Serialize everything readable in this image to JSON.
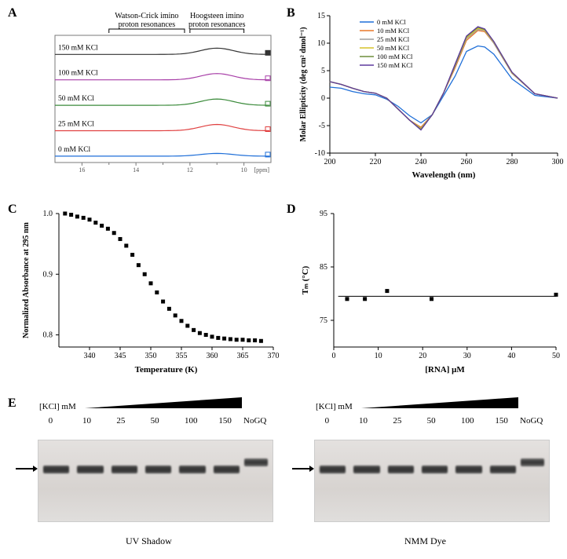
{
  "panelA": {
    "label": "A",
    "annotations": {
      "wc": "Watson-Crick imino\nproton resonances",
      "hoog": "Hoogsteen imino\nproton resonances"
    },
    "x_axis": {
      "label": "[ppm]",
      "ticks": [
        16,
        14,
        12,
        11,
        10
      ],
      "range": [
        17,
        9
      ]
    },
    "series": [
      {
        "label": "0 mM KCl",
        "color": "#1f6fd8",
        "baseline": 4,
        "peak_h": 3.5
      },
      {
        "label": "25 mM KCl",
        "color": "#e04040",
        "baseline": 3,
        "peak_h": 8
      },
      {
        "label": "50 mM KCl",
        "color": "#3a8a3a",
        "baseline": 2,
        "peak_h": 8
      },
      {
        "label": "100 mM KCl",
        "color": "#a83fa8",
        "baseline": 1,
        "peak_h": 8
      },
      {
        "label": "150 mM KCl",
        "color": "#333333",
        "baseline": 0,
        "peak_h": 8
      }
    ],
    "marker_colors": [
      "#1f6fd8",
      "#e04040",
      "#3a8a3a",
      "#a83fa8",
      "#333333"
    ],
    "peak_center_ppm": 11.0,
    "peak_width_ppm": 1.2,
    "box_color": "#000000"
  },
  "panelB": {
    "label": "B",
    "x_axis": {
      "label": "Wavelength (nm)",
      "min": 200,
      "max": 300,
      "ticks": [
        200,
        220,
        240,
        260,
        280,
        300
      ]
    },
    "y_axis": {
      "label": "Molar Ellipticity (deg cm² dmol⁻¹)",
      "min": -10,
      "max": 15,
      "ticks": [
        -10,
        -5,
        0,
        5,
        10,
        15
      ]
    },
    "series": [
      {
        "name": "0 mM KCl",
        "color": "#1f6fd8",
        "points": [
          [
            200,
            2
          ],
          [
            205,
            1.8
          ],
          [
            210,
            1.2
          ],
          [
            215,
            0.8
          ],
          [
            220,
            0.6
          ],
          [
            225,
            -0.2
          ],
          [
            230,
            -1.5
          ],
          [
            235,
            -3.2
          ],
          [
            240,
            -4.5
          ],
          [
            245,
            -3
          ],
          [
            250,
            0.5
          ],
          [
            255,
            4
          ],
          [
            260,
            8.5
          ],
          [
            265,
            9.5
          ],
          [
            268,
            9.3
          ],
          [
            272,
            8
          ],
          [
            280,
            3.5
          ],
          [
            290,
            0.5
          ],
          [
            300,
            0
          ]
        ]
      },
      {
        "name": "10 mM KCl",
        "color": "#e8782a",
        "points": [
          [
            200,
            3
          ],
          [
            205,
            2.5
          ],
          [
            210,
            1.8
          ],
          [
            215,
            1.2
          ],
          [
            220,
            0.9
          ],
          [
            225,
            0
          ],
          [
            230,
            -2
          ],
          [
            235,
            -4
          ],
          [
            240,
            -5.3
          ],
          [
            245,
            -3
          ],
          [
            250,
            1
          ],
          [
            255,
            5.5
          ],
          [
            260,
            10.5
          ],
          [
            265,
            12.3
          ],
          [
            268,
            12.1
          ],
          [
            272,
            10
          ],
          [
            280,
            4.5
          ],
          [
            290,
            0.8
          ],
          [
            300,
            0
          ]
        ]
      },
      {
        "name": "25 mM KCl",
        "color": "#9e9e9e",
        "points": [
          [
            200,
            3
          ],
          [
            205,
            2.5
          ],
          [
            210,
            1.8
          ],
          [
            215,
            1.2
          ],
          [
            220,
            0.9
          ],
          [
            225,
            0
          ],
          [
            230,
            -2
          ],
          [
            235,
            -4
          ],
          [
            240,
            -5.5
          ],
          [
            245,
            -3
          ],
          [
            250,
            1
          ],
          [
            255,
            5.8
          ],
          [
            260,
            10.8
          ],
          [
            265,
            12.5
          ],
          [
            268,
            12.3
          ],
          [
            272,
            10
          ],
          [
            280,
            4.5
          ],
          [
            290,
            0.8
          ],
          [
            300,
            0
          ]
        ]
      },
      {
        "name": "50 mM KCl",
        "color": "#d6c22a",
        "points": [
          [
            200,
            3
          ],
          [
            205,
            2.5
          ],
          [
            210,
            1.8
          ],
          [
            215,
            1.2
          ],
          [
            220,
            0.9
          ],
          [
            225,
            0
          ],
          [
            230,
            -2
          ],
          [
            235,
            -4
          ],
          [
            240,
            -5.6
          ],
          [
            245,
            -3
          ],
          [
            250,
            1
          ],
          [
            255,
            6
          ],
          [
            260,
            11
          ],
          [
            265,
            12.7
          ],
          [
            268,
            12.4
          ],
          [
            272,
            10.2
          ],
          [
            280,
            4.6
          ],
          [
            290,
            0.8
          ],
          [
            300,
            0
          ]
        ]
      },
      {
        "name": "100 mM KCl",
        "color": "#6d8d3b",
        "points": [
          [
            200,
            3
          ],
          [
            205,
            2.5
          ],
          [
            210,
            1.8
          ],
          [
            215,
            1.2
          ],
          [
            220,
            0.9
          ],
          [
            225,
            0
          ],
          [
            230,
            -2
          ],
          [
            235,
            -4
          ],
          [
            240,
            -5.7
          ],
          [
            245,
            -3
          ],
          [
            250,
            1
          ],
          [
            255,
            6
          ],
          [
            260,
            11.2
          ],
          [
            265,
            12.9
          ],
          [
            268,
            12.5
          ],
          [
            272,
            10.3
          ],
          [
            280,
            4.7
          ],
          [
            290,
            0.8
          ],
          [
            300,
            0
          ]
        ]
      },
      {
        "name": "150 mM KCl",
        "color": "#5e3a9e",
        "points": [
          [
            200,
            3
          ],
          [
            205,
            2.5
          ],
          [
            210,
            1.8
          ],
          [
            215,
            1.2
          ],
          [
            220,
            0.9
          ],
          [
            225,
            0
          ],
          [
            230,
            -2
          ],
          [
            235,
            -4
          ],
          [
            240,
            -5.8
          ],
          [
            245,
            -3
          ],
          [
            250,
            1
          ],
          [
            255,
            6.2
          ],
          [
            260,
            11.3
          ],
          [
            265,
            13.0
          ],
          [
            268,
            12.6
          ],
          [
            272,
            10.3
          ],
          [
            280,
            4.7
          ],
          [
            290,
            0.8
          ],
          [
            300,
            0
          ]
        ]
      }
    ]
  },
  "panelC": {
    "label": "C",
    "x_axis": {
      "label": "Temperature (K)",
      "min": 335,
      "max": 370,
      "ticks": [
        340,
        345,
        350,
        355,
        360,
        365,
        370
      ]
    },
    "y_axis": {
      "label": "Normalized Absorbance at 295 nm",
      "min": 0.78,
      "max": 1.0,
      "ticks": [
        0.8,
        0.9,
        1.0
      ]
    },
    "marker": {
      "color": "#000000",
      "shape": "square",
      "size": 5
    },
    "points": [
      [
        336,
        1.0
      ],
      [
        337,
        0.998
      ],
      [
        338,
        0.995
      ],
      [
        339,
        0.993
      ],
      [
        340,
        0.99
      ],
      [
        341,
        0.985
      ],
      [
        342,
        0.98
      ],
      [
        343,
        0.975
      ],
      [
        344,
        0.968
      ],
      [
        345,
        0.958
      ],
      [
        346,
        0.947
      ],
      [
        347,
        0.932
      ],
      [
        348,
        0.915
      ],
      [
        349,
        0.9
      ],
      [
        350,
        0.885
      ],
      [
        351,
        0.87
      ],
      [
        352,
        0.855
      ],
      [
        353,
        0.843
      ],
      [
        354,
        0.832
      ],
      [
        355,
        0.823
      ],
      [
        356,
        0.815
      ],
      [
        357,
        0.808
      ],
      [
        358,
        0.803
      ],
      [
        359,
        0.8
      ],
      [
        360,
        0.797
      ],
      [
        361,
        0.795
      ],
      [
        362,
        0.794
      ],
      [
        363,
        0.793
      ],
      [
        364,
        0.792
      ],
      [
        365,
        0.792
      ],
      [
        366,
        0.791
      ],
      [
        367,
        0.791
      ],
      [
        368,
        0.79
      ]
    ]
  },
  "panelD": {
    "label": "D",
    "x_axis": {
      "label": "[RNA] μM",
      "min": 0,
      "max": 50,
      "ticks": [
        0,
        10,
        20,
        30,
        40,
        50
      ]
    },
    "y_axis": {
      "label": "Tₘ (°C)",
      "min": 70,
      "max": 95,
      "ticks": [
        75,
        85,
        95
      ]
    },
    "marker": {
      "color": "#000000",
      "shape": "square",
      "size": 5
    },
    "points": [
      [
        3,
        79.0
      ],
      [
        7,
        79.0
      ],
      [
        12,
        80.5
      ],
      [
        22,
        79.0
      ],
      [
        50,
        79.8
      ]
    ],
    "fit_line": {
      "y": 79.5,
      "color": "#000000"
    }
  },
  "panelE": {
    "label": "E",
    "kcl_label": "[KCl] mM",
    "concs": [
      "0",
      "10",
      "25",
      "50",
      "100",
      "150"
    ],
    "nogq": "NoGQ",
    "gel_bg": "#d9d6d4",
    "band_color": "#3a3a3a",
    "left_caption": "UV Shadow",
    "right_caption": "NMM Dye"
  }
}
